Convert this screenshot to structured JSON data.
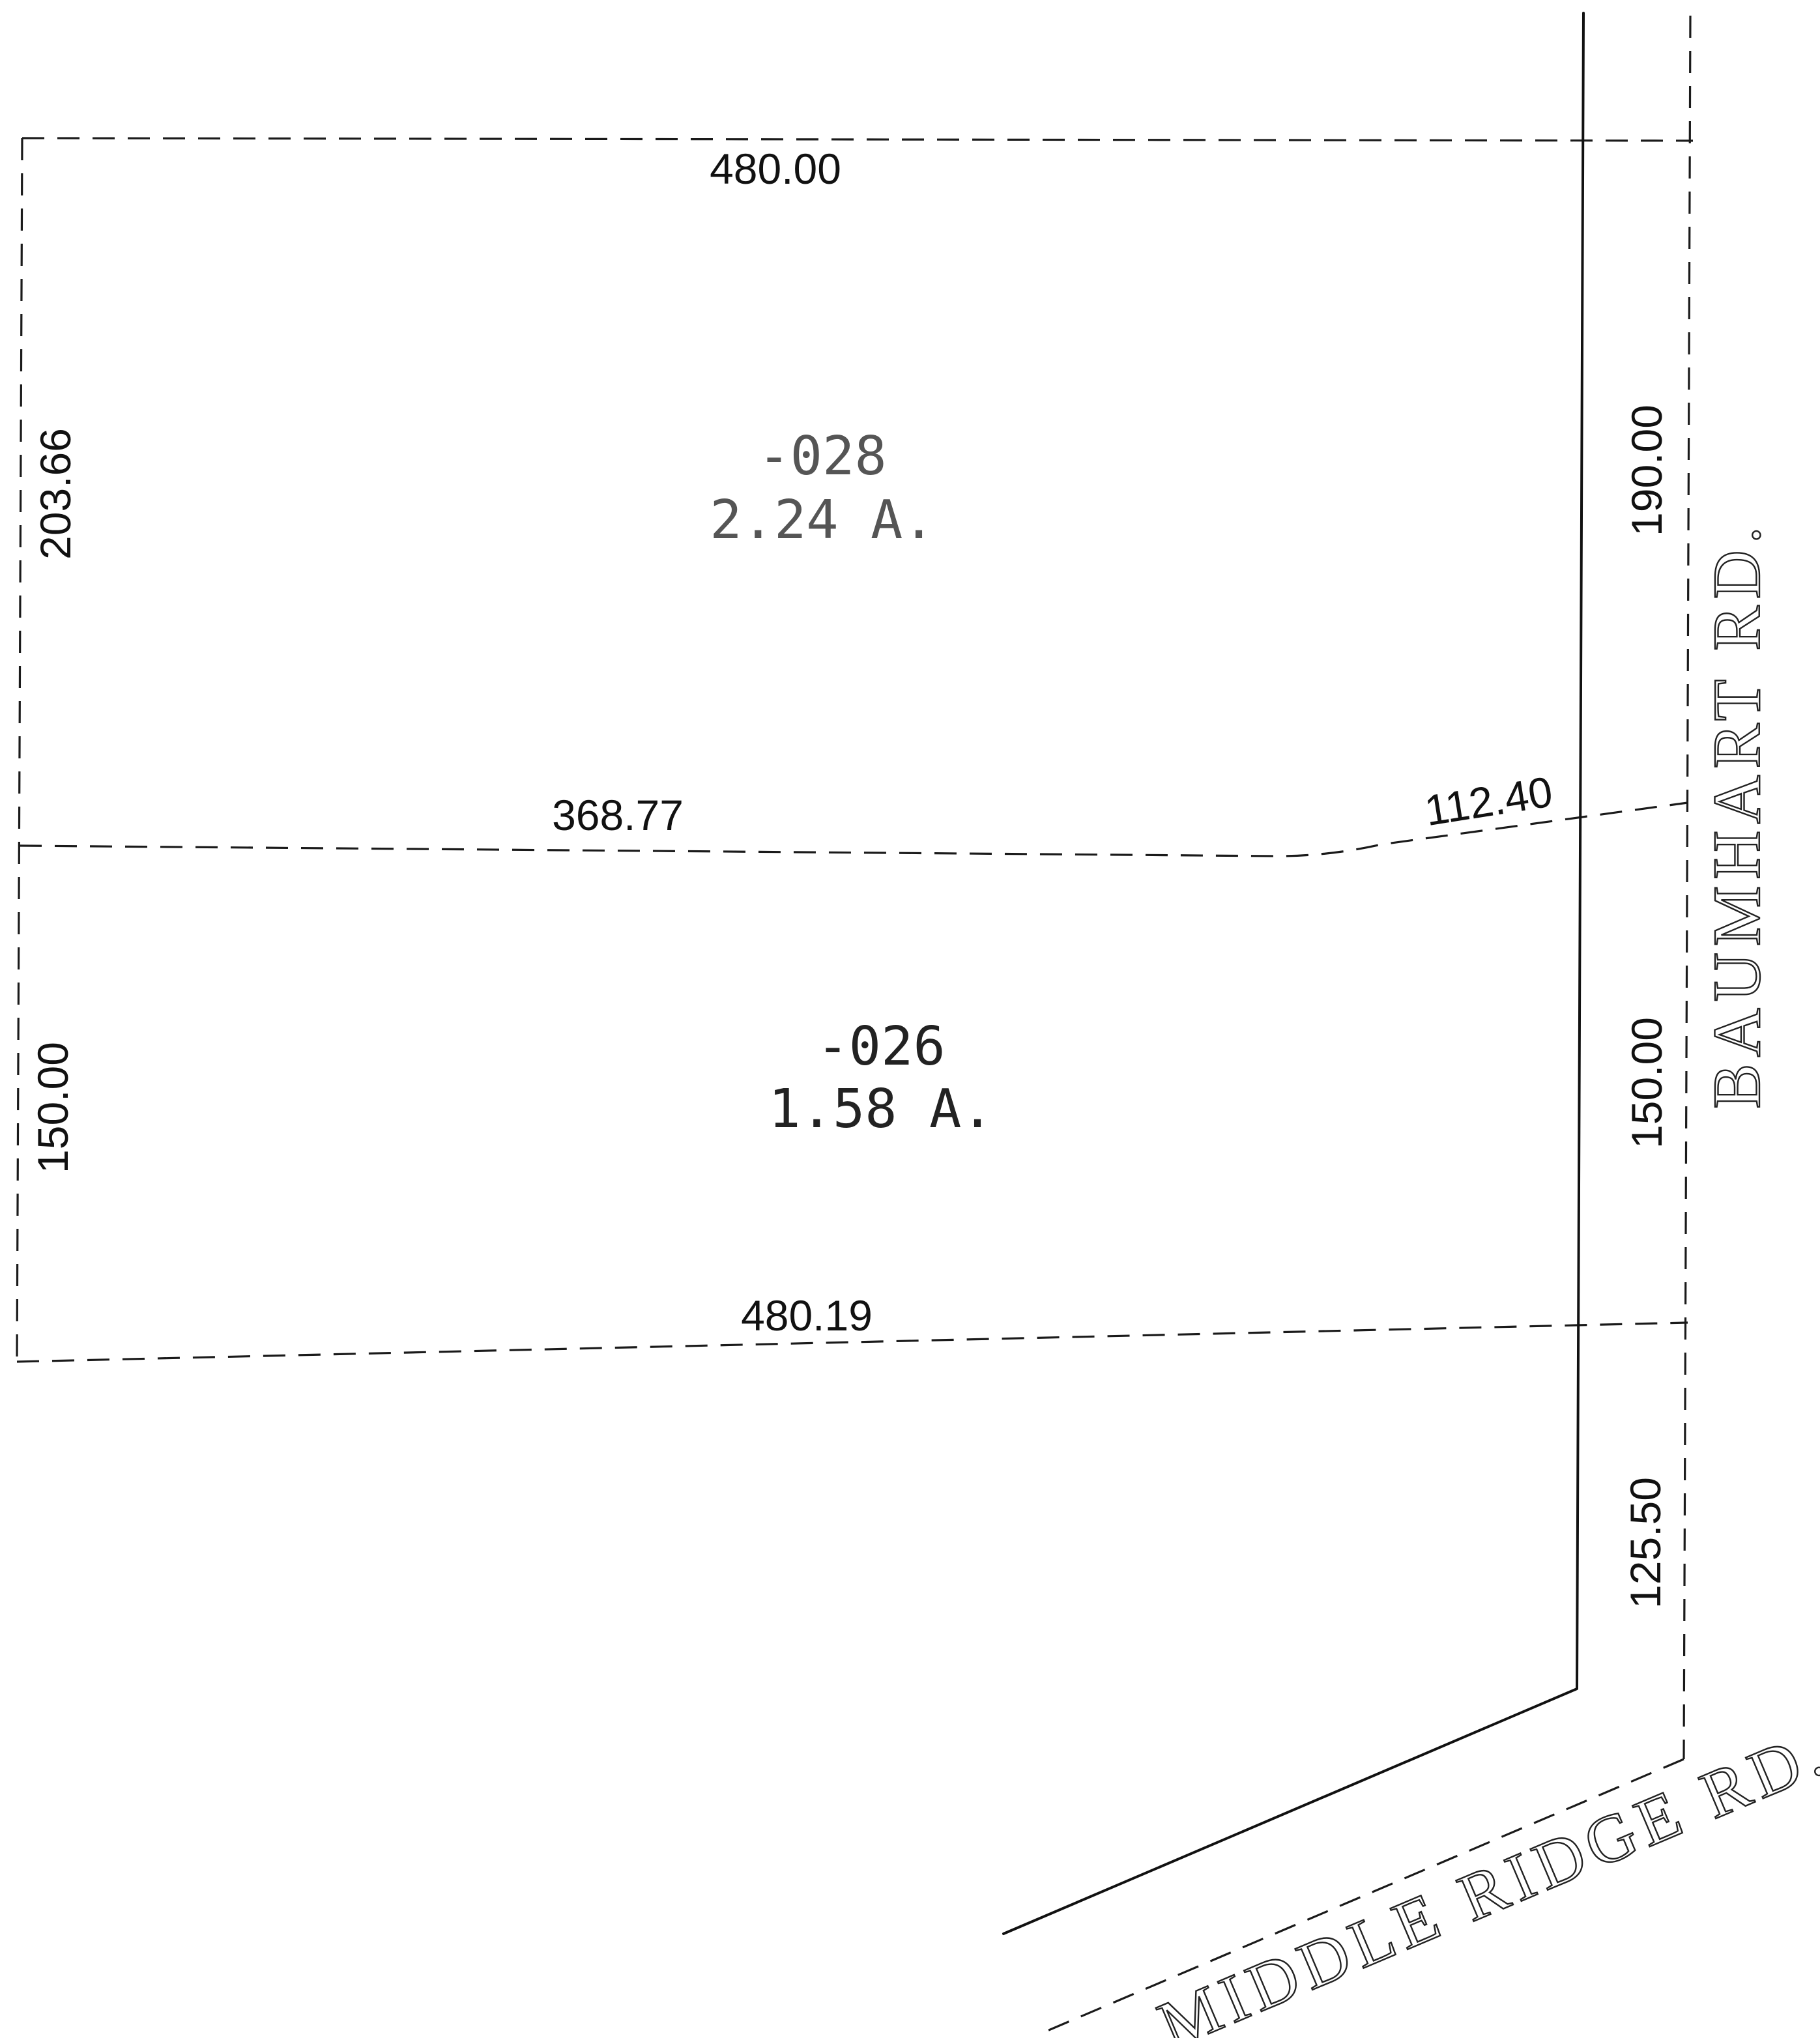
{
  "parcels": [
    {
      "id": "-028",
      "area": "2.24 A."
    },
    {
      "id": "-026",
      "area": "1.58 A."
    }
  ],
  "dimensions": {
    "north_line": "480.00",
    "south_line": "480.19",
    "middle_line": "368.77",
    "middle_curve": "112.40",
    "west_upper": "203.66",
    "west_lower": "150.00",
    "east_upper": "190.00",
    "east_middle": "150.00",
    "east_lower": "125.50"
  },
  "roads": {
    "east": "BAUMHART  RD.",
    "south": "MIDDLE  RIDGE  RD."
  }
}
